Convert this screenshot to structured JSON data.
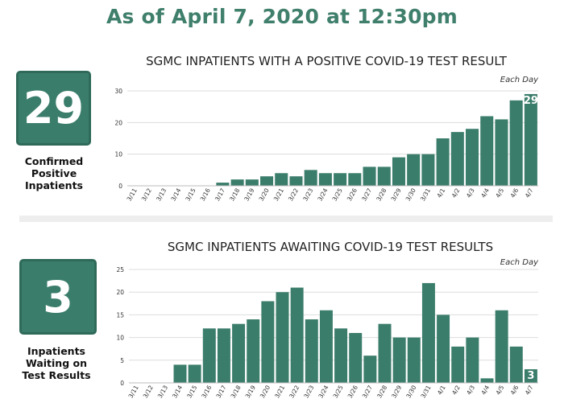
{
  "headline": "As of April 7, 2020 at 12:30pm",
  "stat1": {
    "value": "29",
    "label_lines": [
      "Confirmed",
      "Positive",
      "Inpatients"
    ]
  },
  "stat2": {
    "value": "3",
    "label_lines": [
      "Inpatients",
      "Waiting on",
      "Test Results"
    ]
  },
  "colors": {
    "bar": "#3b7d6b",
    "headline": "#3f7f6b",
    "divider": "#eeeeee"
  },
  "chart_data": [
    {
      "type": "bar",
      "title": "SGMC INPATIENTS WITH A POSITIVE COVID-19 TEST RESULT",
      "subtitle": "Each Day",
      "xlabel": "",
      "ylabel": "",
      "ylim": [
        0,
        30
      ],
      "yticks": [
        0,
        10,
        20,
        30
      ],
      "grid": true,
      "categories": [
        "3/11",
        "3/12",
        "3/13",
        "3/14",
        "3/15",
        "3/16",
        "3/17",
        "3/18",
        "3/19",
        "3/20",
        "3/21",
        "3/22",
        "3/23",
        "3/24",
        "3/25",
        "3/26",
        "3/27",
        "3/28",
        "3/29",
        "3/30",
        "3/31",
        "4/1",
        "4/2",
        "4/3",
        "4/4",
        "4/5",
        "4/6",
        "4/7"
      ],
      "values": [
        0,
        0,
        0,
        0,
        0,
        0,
        1,
        2,
        2,
        3,
        4,
        3,
        5,
        4,
        4,
        4,
        6,
        6,
        9,
        10,
        10,
        15,
        17,
        18,
        22,
        21,
        27,
        29
      ],
      "last_value_label": "29"
    },
    {
      "type": "bar",
      "title": "SGMC INPATIENTS AWAITING COVID-19 TEST RESULTS",
      "subtitle": "Each Day",
      "xlabel": "",
      "ylabel": "",
      "ylim": [
        0,
        25
      ],
      "yticks": [
        0,
        5,
        10,
        15,
        20,
        25
      ],
      "grid": true,
      "categories": [
        "3/11",
        "3/12",
        "3/13",
        "3/14",
        "3/15",
        "3/16",
        "3/17",
        "3/18",
        "3/19",
        "3/20",
        "3/21",
        "3/22",
        "3/23",
        "3/24",
        "3/25",
        "3/26",
        "3/27",
        "3/28",
        "3/29",
        "3/30",
        "3/31",
        "4/1",
        "4/2",
        "4/3",
        "4/4",
        "4/5",
        "4/6",
        "4/7"
      ],
      "values": [
        0,
        0,
        0,
        4,
        4,
        12,
        12,
        13,
        14,
        18,
        20,
        21,
        14,
        16,
        12,
        11,
        6,
        13,
        10,
        10,
        22,
        15,
        8,
        10,
        1,
        16,
        8,
        3
      ],
      "last_value_label": "3"
    }
  ]
}
